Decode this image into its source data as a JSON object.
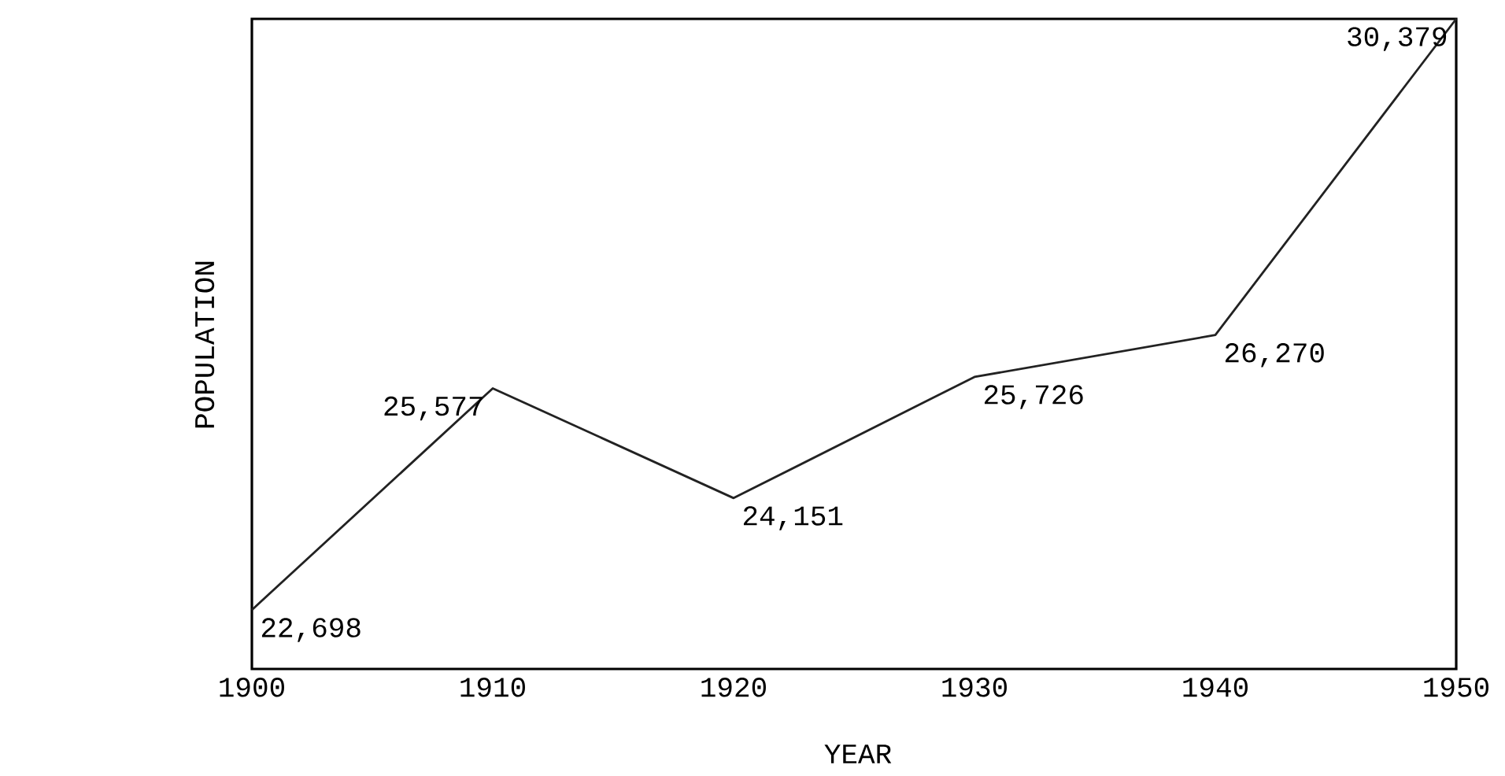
{
  "chart_data": {
    "type": "line",
    "xlabel": "YEAR",
    "ylabel": "POPULATION",
    "x": [
      1900,
      1910,
      1920,
      1930,
      1940,
      1950
    ],
    "values": [
      22698,
      25577,
      24151,
      25726,
      26270,
      30379
    ],
    "value_labels": [
      "22,698",
      "25,577",
      "24,151",
      "25,726",
      "26,270",
      "30,379"
    ],
    "color": "#222222",
    "xlim": [
      1900,
      1950
    ],
    "xticks": [
      1900,
      1910,
      1920,
      1930,
      1940,
      1950
    ],
    "tick_labels": "x",
    "marker": "none",
    "line_style": "solid"
  }
}
